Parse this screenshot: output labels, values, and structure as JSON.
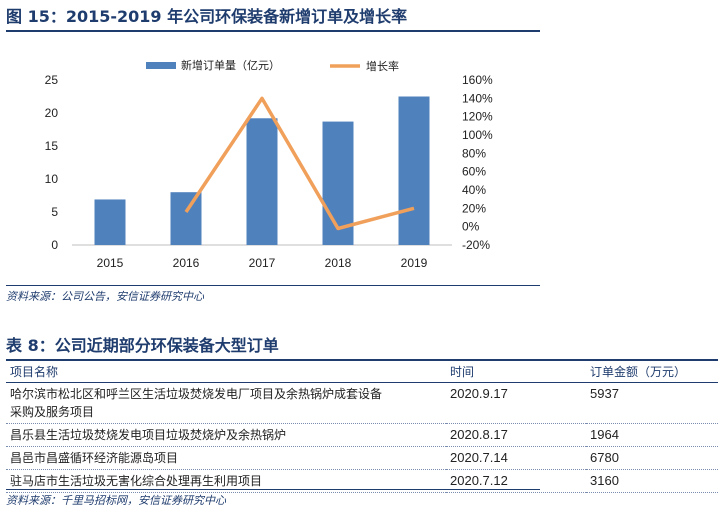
{
  "figure": {
    "title": "图 15：2015-2019 年公司环保装备新增订单及增长率",
    "source": "资料来源：公司公告，安信证券研究中心"
  },
  "chart_data": {
    "type": "bar",
    "categories": [
      "2015",
      "2016",
      "2017",
      "2018",
      "2019"
    ],
    "series": [
      {
        "name": "新增订单量（亿元）",
        "type": "bar",
        "axis": "left",
        "color": "#4f81bd",
        "values": [
          6.9,
          8.0,
          19.2,
          18.7,
          22.5
        ]
      },
      {
        "name": "增长率",
        "type": "line",
        "axis": "right",
        "color": "#f0a05a",
        "values": [
          null,
          16,
          140,
          -2,
          20
        ]
      }
    ],
    "ylim_left": [
      0,
      25
    ],
    "yticks_left": [
      0,
      5,
      10,
      15,
      20,
      25
    ],
    "ylim_right": [
      -20,
      160
    ],
    "yticks_right": [
      "-20%",
      "0%",
      "20%",
      "40%",
      "60%",
      "80%",
      "100%",
      "120%",
      "140%",
      "160%"
    ],
    "legend_position": "top",
    "grid": false
  },
  "table": {
    "title": "表 8：公司近期部分环保装备大型订单",
    "headers": [
      "项目名称",
      "时间",
      "订单金额（万元）"
    ],
    "rows": [
      {
        "name": [
          "哈尔滨市松北区和呼兰区生活垃圾焚烧发电厂项目及余热锅炉成套设备",
          "采购及服务项目"
        ],
        "date": "2020.9.17",
        "amount": "5937"
      },
      {
        "name": [
          "昌乐县生活垃圾焚烧发电项目垃圾焚烧炉及余热锅炉"
        ],
        "date": "2020.8.17",
        "amount": "1964"
      },
      {
        "name": [
          "昌邑市昌盛循环经济能源岛项目"
        ],
        "date": "2020.7.14",
        "amount": "6780"
      },
      {
        "name": [
          "驻马店市生活垃圾无害化综合处理再生利用项目"
        ],
        "date": "2020.7.12",
        "amount": "3160"
      }
    ],
    "source": "资料来源：千里马招标网，安信证券研究中心"
  }
}
